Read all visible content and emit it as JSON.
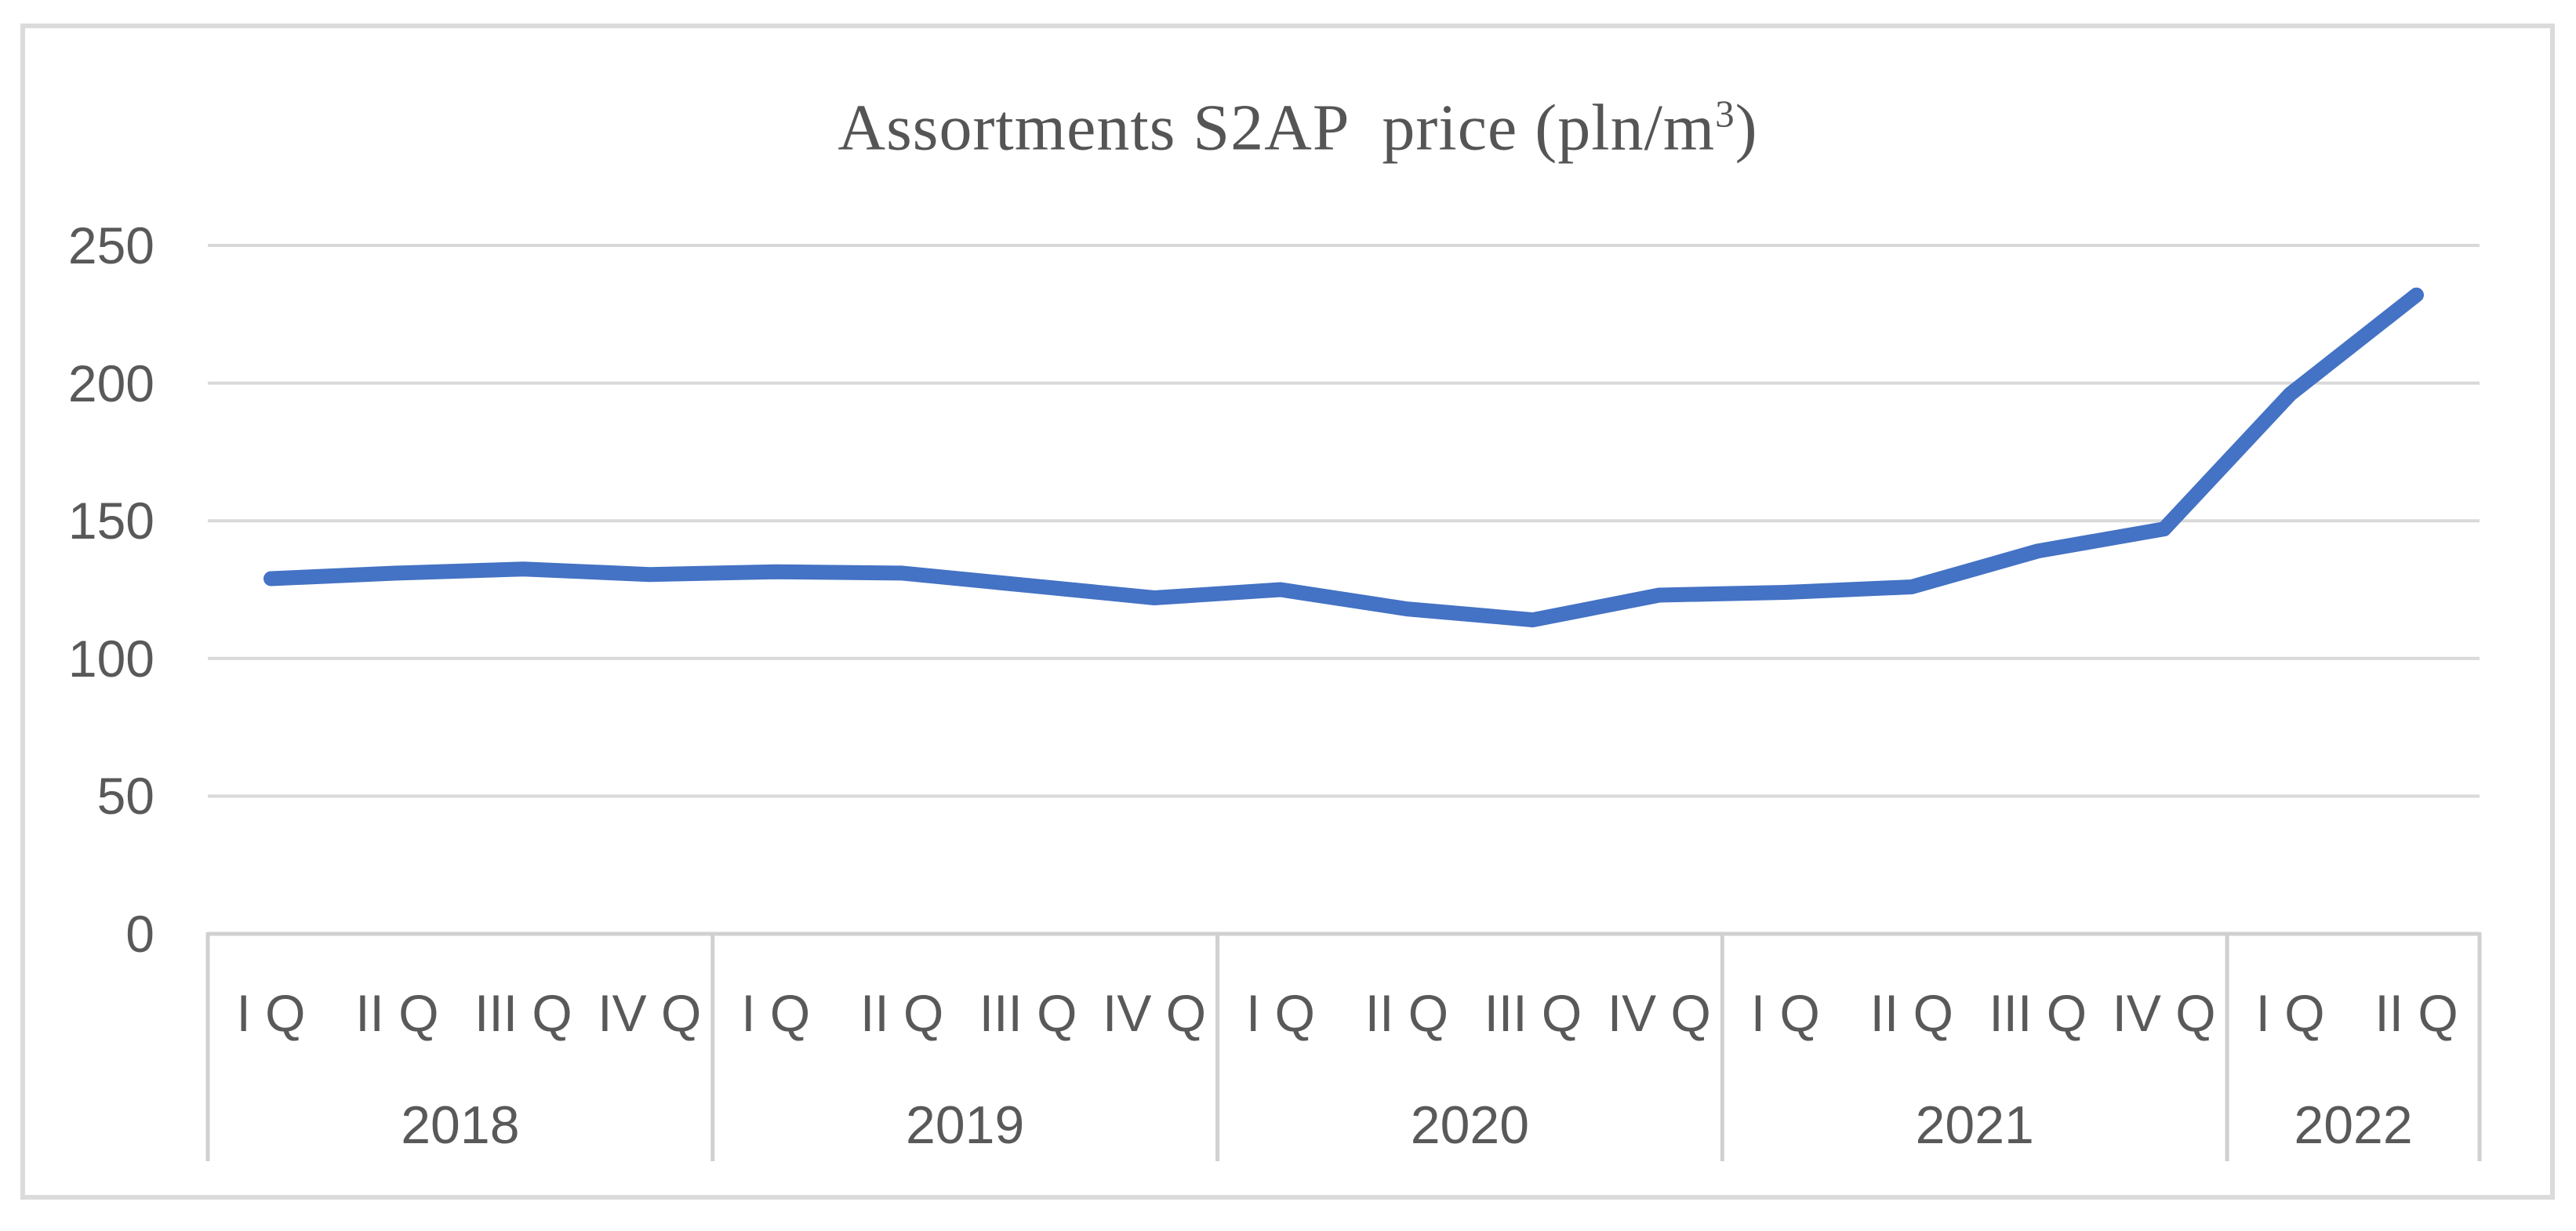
{
  "title": {
    "prefix": "Assortments S2AP  price (pln/m",
    "superscript": "3",
    "suffix": ")"
  },
  "chart_data": {
    "type": "line",
    "title": "Assortments S2AP price (pln/m³)",
    "series": [
      {
        "name": "S2AP price (pln/m³)",
        "values": [
          129,
          131,
          132.5,
          130.5,
          131.5,
          131,
          126.5,
          122,
          125,
          118,
          114,
          123,
          124,
          126,
          139,
          147,
          196,
          232
        ]
      }
    ],
    "x_groups": [
      {
        "year": "2018",
        "quarters": [
          "I Q",
          "II Q",
          "III Q",
          "IV Q"
        ]
      },
      {
        "year": "2019",
        "quarters": [
          "I Q",
          "II Q",
          "III Q",
          "IV Q"
        ]
      },
      {
        "year": "2020",
        "quarters": [
          "I Q",
          "II Q",
          "III Q",
          "IV Q"
        ]
      },
      {
        "year": "2021",
        "quarters": [
          "I Q",
          "II Q",
          "III Q",
          "IV Q"
        ]
      },
      {
        "year": "2022",
        "quarters": [
          "I Q",
          "II Q"
        ]
      }
    ],
    "yticks": [
      0,
      50,
      100,
      150,
      200,
      250
    ],
    "ylim": [
      0,
      250
    ],
    "grid": true,
    "legend_position": "none",
    "line_color": "#4472C4",
    "gridline_color": "#D9D9D9",
    "axis_table_line_color": "#D0D0D0",
    "border_color": "#DBDBDB",
    "label_color": "#595959",
    "title_color": "#555555"
  }
}
